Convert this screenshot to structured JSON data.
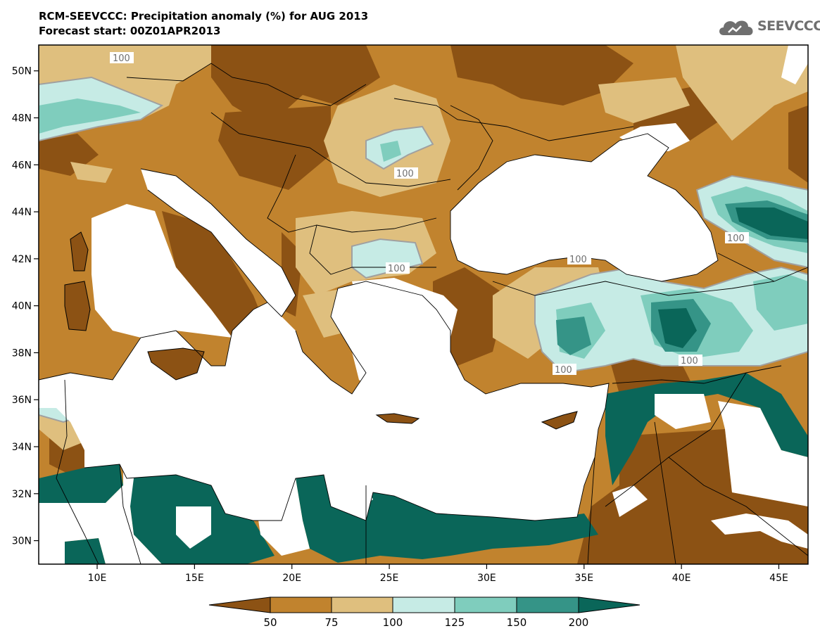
{
  "header": {
    "title": "RCM-SEEVCCC: Precipitation anomaly (%) for AUG 2013",
    "subtitle": "Forecast start: 00Z01APR2013"
  },
  "logo": {
    "text": "SEEVCCC",
    "icon": "cloud-icon",
    "color": "#6f6f6f"
  },
  "axes": {
    "lat_labels": [
      "50N",
      "48N",
      "46N",
      "44N",
      "42N",
      "40N",
      "38N",
      "36N",
      "34N",
      "32N",
      "30N"
    ],
    "lon_labels": [
      "10E",
      "15E",
      "20E",
      "25E",
      "30E",
      "35E",
      "40E",
      "45E"
    ],
    "lat_range": [
      29,
      51.1
    ],
    "lon_range": [
      7,
      46.5
    ]
  },
  "contour_labels": [
    "100",
    "100",
    "100",
    "100",
    "100",
    "100",
    "100"
  ],
  "colorbar": {
    "labels": [
      "50",
      "75",
      "100",
      "125",
      "150",
      "200"
    ],
    "colors": [
      "#8c5214",
      "#c1832e",
      "#dfbf7e",
      "#c6ebe5",
      "#7fcdbd",
      "#359487",
      "#0a6659"
    ]
  },
  "palette": {
    "dry_dark": "#8c5214",
    "dry_mid": "#c1832e",
    "dry_light": "#dfbf7e",
    "wet_light": "#c6ebe5",
    "wet_mid": "#7fcdbd",
    "wet_dark": "#359487",
    "wet_darkest": "#0a6659",
    "sea": "#ffffff"
  }
}
